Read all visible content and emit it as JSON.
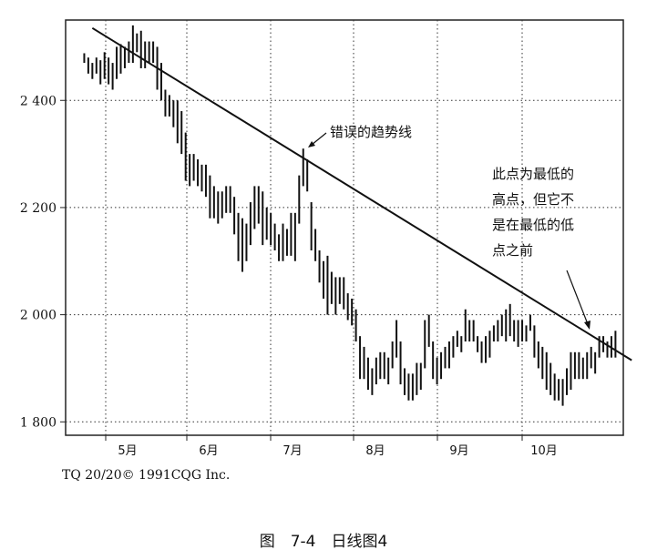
{
  "chart_data": {
    "type": "ohlc",
    "y_ticks": [
      1800,
      2000,
      2200,
      2400
    ],
    "y_tick_labels": [
      "1 800",
      "2 000",
      "2 200",
      "2 400"
    ],
    "ylim": [
      1775,
      2550
    ],
    "x_months": [
      "5月",
      "6月",
      "7月",
      "8月",
      "9月",
      "10月"
    ],
    "grid": true,
    "trendline": {
      "label": "错误的趋势线",
      "start": [
        3,
        2535
      ],
      "end": [
        136,
        1915
      ]
    },
    "annotation_lines": [
      "此点为最低的",
      "高点，但它不",
      "是在最低的低",
      "点之前"
    ],
    "bars": [
      [
        1,
        2470,
        2488
      ],
      [
        2,
        2450,
        2480
      ],
      [
        3,
        2440,
        2470
      ],
      [
        4,
        2450,
        2480
      ],
      [
        5,
        2430,
        2475
      ],
      [
        6,
        2440,
        2490
      ],
      [
        7,
        2430,
        2480
      ],
      [
        8,
        2420,
        2470
      ],
      [
        9,
        2440,
        2500
      ],
      [
        10,
        2450,
        2505
      ],
      [
        11,
        2460,
        2500
      ],
      [
        12,
        2470,
        2510
      ],
      [
        13,
        2470,
        2540
      ],
      [
        14,
        2490,
        2525
      ],
      [
        15,
        2460,
        2530
      ],
      [
        16,
        2460,
        2510
      ],
      [
        17,
        2470,
        2510
      ],
      [
        18,
        2470,
        2510
      ],
      [
        19,
        2420,
        2500
      ],
      [
        20,
        2400,
        2470
      ],
      [
        21,
        2370,
        2420
      ],
      [
        22,
        2370,
        2410
      ],
      [
        23,
        2350,
        2400
      ],
      [
        24,
        2320,
        2400
      ],
      [
        25,
        2300,
        2380
      ],
      [
        26,
        2250,
        2340
      ],
      [
        27,
        2240,
        2300
      ],
      [
        28,
        2250,
        2300
      ],
      [
        29,
        2240,
        2290
      ],
      [
        30,
        2230,
        2280
      ],
      [
        31,
        2220,
        2280
      ],
      [
        32,
        2180,
        2260
      ],
      [
        33,
        2180,
        2240
      ],
      [
        34,
        2170,
        2230
      ],
      [
        35,
        2180,
        2230
      ],
      [
        36,
        2190,
        2240
      ],
      [
        37,
        2190,
        2240
      ],
      [
        38,
        2150,
        2220
      ],
      [
        39,
        2100,
        2190
      ],
      [
        40,
        2080,
        2180
      ],
      [
        41,
        2100,
        2170
      ],
      [
        42,
        2130,
        2210
      ],
      [
        43,
        2160,
        2240
      ],
      [
        44,
        2170,
        2240
      ],
      [
        45,
        2130,
        2230
      ],
      [
        46,
        2140,
        2200
      ],
      [
        47,
        2130,
        2190
      ],
      [
        48,
        2120,
        2170
      ],
      [
        49,
        2100,
        2150
      ],
      [
        50,
        2100,
        2170
      ],
      [
        51,
        2110,
        2160
      ],
      [
        52,
        2110,
        2190
      ],
      [
        53,
        2100,
        2190
      ],
      [
        54,
        2170,
        2260
      ],
      [
        55,
        2240,
        2310
      ],
      [
        56,
        2230,
        2290
      ],
      [
        57,
        2120,
        2210
      ],
      [
        58,
        2100,
        2160
      ],
      [
        59,
        2060,
        2120
      ],
      [
        60,
        2030,
        2100
      ],
      [
        61,
        2000,
        2110
      ],
      [
        62,
        2020,
        2080
      ],
      [
        63,
        2000,
        2070
      ],
      [
        64,
        2020,
        2070
      ],
      [
        65,
        2010,
        2070
      ],
      [
        66,
        1990,
        2040
      ],
      [
        67,
        1980,
        2030
      ],
      [
        68,
        1950,
        2010
      ],
      [
        69,
        1880,
        1960
      ],
      [
        70,
        1880,
        1940
      ],
      [
        71,
        1860,
        1920
      ],
      [
        72,
        1850,
        1900
      ],
      [
        73,
        1870,
        1920
      ],
      [
        74,
        1880,
        1930
      ],
      [
        75,
        1880,
        1930
      ],
      [
        76,
        1870,
        1920
      ],
      [
        77,
        1900,
        1950
      ],
      [
        78,
        1920,
        1990
      ],
      [
        79,
        1870,
        1950
      ],
      [
        80,
        1850,
        1900
      ],
      [
        81,
        1840,
        1890
      ],
      [
        82,
        1840,
        1890
      ],
      [
        83,
        1850,
        1910
      ],
      [
        84,
        1860,
        1910
      ],
      [
        85,
        1900,
        1990
      ],
      [
        86,
        1940,
        2000
      ],
      [
        87,
        1880,
        1950
      ],
      [
        88,
        1870,
        1920
      ],
      [
        89,
        1880,
        1930
      ],
      [
        90,
        1900,
        1940
      ],
      [
        91,
        1900,
        1950
      ],
      [
        92,
        1920,
        1960
      ],
      [
        93,
        1940,
        1970
      ],
      [
        94,
        1930,
        1960
      ],
      [
        95,
        1950,
        2010
      ],
      [
        96,
        1950,
        1990
      ],
      [
        97,
        1950,
        1990
      ],
      [
        98,
        1930,
        1960
      ],
      [
        99,
        1910,
        1950
      ],
      [
        100,
        1910,
        1960
      ],
      [
        101,
        1920,
        1970
      ],
      [
        102,
        1950,
        1980
      ],
      [
        103,
        1950,
        1990
      ],
      [
        104,
        1960,
        2000
      ],
      [
        105,
        1950,
        2010
      ],
      [
        106,
        1960,
        2020
      ],
      [
        107,
        1950,
        1990
      ],
      [
        108,
        1940,
        1990
      ],
      [
        109,
        1950,
        1990
      ],
      [
        110,
        1950,
        1980
      ],
      [
        111,
        1970,
        2000
      ],
      [
        112,
        1920,
        1980
      ],
      [
        113,
        1900,
        1950
      ],
      [
        114,
        1880,
        1940
      ],
      [
        115,
        1860,
        1930
      ],
      [
        116,
        1850,
        1910
      ],
      [
        117,
        1840,
        1890
      ],
      [
        118,
        1840,
        1880
      ],
      [
        119,
        1830,
        1880
      ],
      [
        120,
        1850,
        1900
      ],
      [
        121,
        1860,
        1930
      ],
      [
        122,
        1880,
        1930
      ],
      [
        123,
        1880,
        1930
      ],
      [
        124,
        1880,
        1920
      ],
      [
        125,
        1880,
        1930
      ],
      [
        126,
        1900,
        1940
      ],
      [
        127,
        1890,
        1930
      ],
      [
        128,
        1920,
        1960
      ],
      [
        129,
        1930,
        1960
      ],
      [
        130,
        1920,
        1950
      ],
      [
        131,
        1920,
        1960
      ],
      [
        132,
        1920,
        1970
      ]
    ]
  },
  "footer": {
    "copyright": "TQ 20/20© 1991CQG Inc.",
    "caption": "图　7-4　日线图4"
  }
}
